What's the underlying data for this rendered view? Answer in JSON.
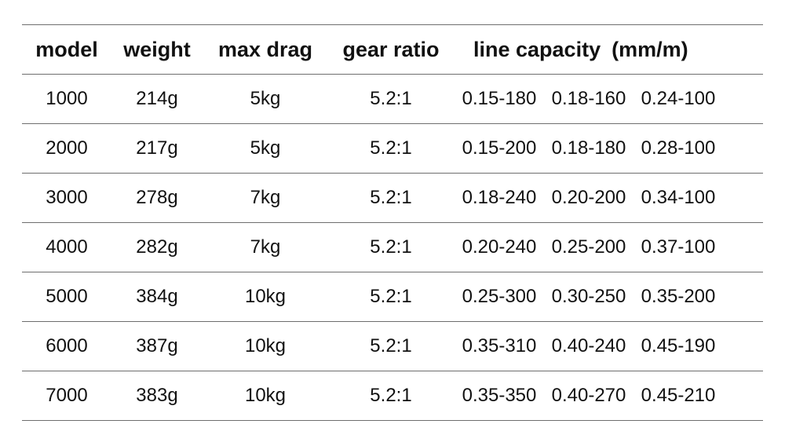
{
  "header": {
    "model": "model",
    "weight": "weight",
    "max_drag": "max drag",
    "gear_ratio": "gear ratio",
    "line_capacity": "line capacity",
    "line_capacity_unit": "(mm/m)"
  },
  "rows": [
    {
      "model": "1000",
      "weight": "214g",
      "max_drag": "5kg",
      "gear_ratio": "5.2:1",
      "lc": [
        "0.15-180",
        "0.18-160",
        "0.24-100"
      ]
    },
    {
      "model": "2000",
      "weight": "217g",
      "max_drag": "5kg",
      "gear_ratio": "5.2:1",
      "lc": [
        "0.15-200",
        "0.18-180",
        "0.28-100"
      ]
    },
    {
      "model": "3000",
      "weight": "278g",
      "max_drag": "7kg",
      "gear_ratio": "5.2:1",
      "lc": [
        "0.18-240",
        "0.20-200",
        "0.34-100"
      ]
    },
    {
      "model": "4000",
      "weight": "282g",
      "max_drag": "7kg",
      "gear_ratio": "5.2:1",
      "lc": [
        "0.20-240",
        "0.25-200",
        "0.37-100"
      ]
    },
    {
      "model": "5000",
      "weight": "384g",
      "max_drag": "10kg",
      "gear_ratio": "5.2:1",
      "lc": [
        "0.25-300",
        "0.30-250",
        "0.35-200"
      ]
    },
    {
      "model": "6000",
      "weight": "387g",
      "max_drag": "10kg",
      "gear_ratio": "5.2:1",
      "lc": [
        "0.35-310",
        "0.40-240",
        "0.45-190"
      ]
    },
    {
      "model": "7000",
      "weight": "383g",
      "max_drag": "10kg",
      "gear_ratio": "5.2:1",
      "lc": [
        "0.35-350",
        "0.40-270",
        "0.45-210"
      ]
    }
  ]
}
